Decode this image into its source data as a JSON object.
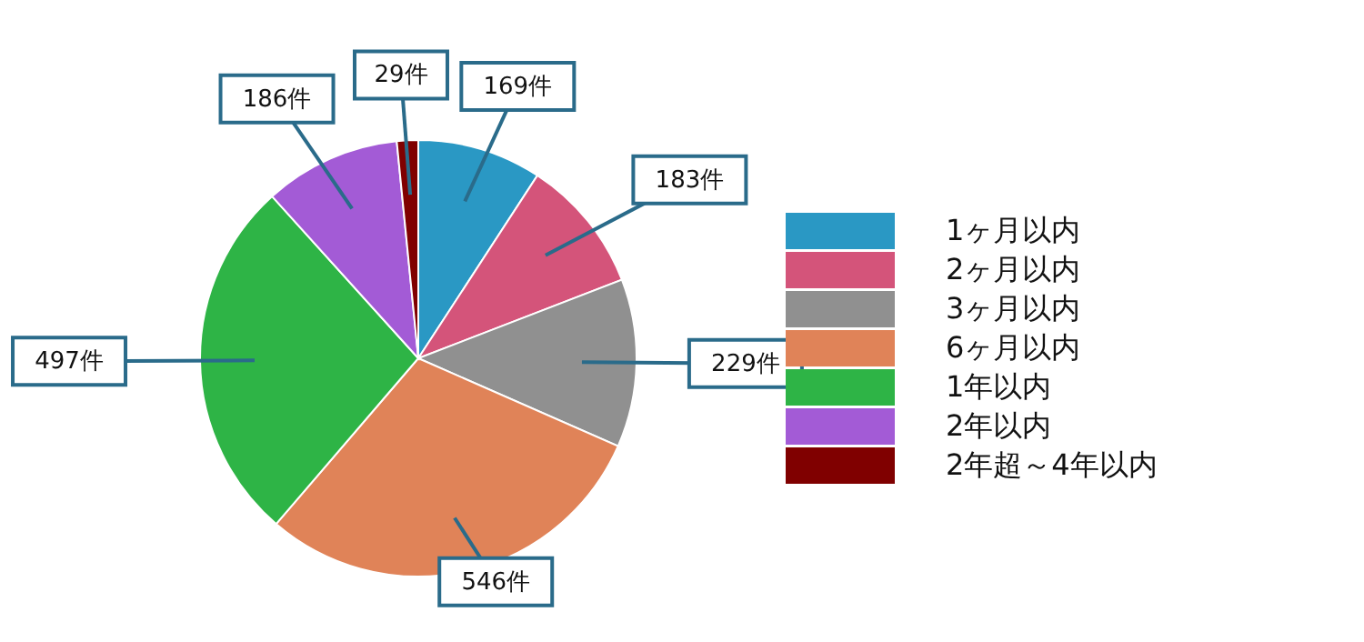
{
  "chart_data": {
    "type": "pie",
    "categories": [
      "1ヶ月以内",
      "2ヶ月以内",
      "3ヶ月以内",
      "6ヶ月以内",
      "1年以内",
      "2年以内",
      "2年超～4年以内"
    ],
    "values": [
      169,
      183,
      229,
      546,
      497,
      186,
      29
    ],
    "value_labels": [
      "169件",
      "183件",
      "229件",
      "546件",
      "497件",
      "186件",
      "29件"
    ],
    "colors": [
      "#2a98c4",
      "#d4547a",
      "#909090",
      "#e08358",
      "#2eb446",
      "#a35bd6",
      "#800000"
    ],
    "legend": "right"
  }
}
